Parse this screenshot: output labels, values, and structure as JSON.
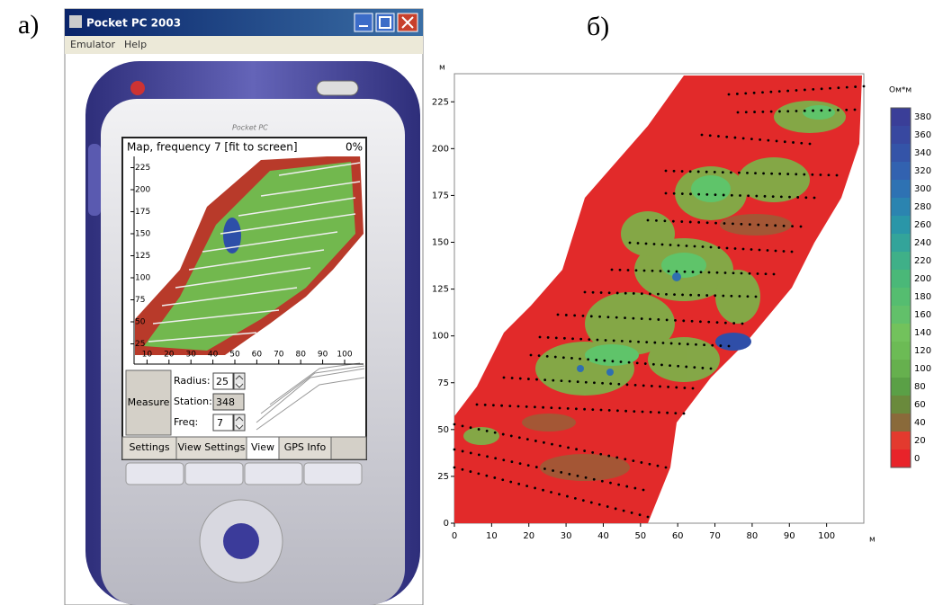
{
  "labels": {
    "left": "а)",
    "right": "б)"
  },
  "emulator": {
    "title": "Pocket PC 2003",
    "menu": [
      "Emulator",
      "Help"
    ],
    "brand": "Pocket PC",
    "screen": {
      "title": "Map, frequency 7 [fit to screen]",
      "progress": "0%",
      "yticks": [
        225,
        200,
        175,
        150,
        125,
        100,
        75,
        50,
        25
      ],
      "xticks": [
        10,
        20,
        30,
        40,
        50,
        60,
        70,
        80,
        90,
        100
      ]
    },
    "controls": {
      "button": "Measure",
      "radius_label": "Radius:",
      "radius": 25,
      "station_label": "Station:",
      "station": 348,
      "freq_label": "Freq:",
      "freq": 7
    },
    "tabs": [
      "Settings",
      "View Settings",
      "View",
      "GPS Info"
    ]
  },
  "map": {
    "y_unit": "м",
    "x_unit": "м",
    "xlim": [
      0,
      110
    ],
    "ylim": [
      0,
      240
    ],
    "xticks": [
      0,
      10,
      20,
      30,
      40,
      50,
      60,
      70,
      80,
      90,
      100
    ],
    "yticks": [
      0,
      25,
      50,
      75,
      100,
      125,
      150,
      175,
      200,
      225
    ],
    "colorbar": {
      "title": "Ом*м",
      "ticks": [
        0,
        20,
        40,
        60,
        80,
        100,
        120,
        140,
        160,
        180,
        200,
        220,
        240,
        260,
        280,
        300,
        320,
        340,
        360,
        380
      ],
      "colors": [
        "#e8232a",
        "#e33a2e",
        "#8a6a3a",
        "#6a8a3c",
        "#5aa046",
        "#66b04e",
        "#6cbb55",
        "#72c25c",
        "#62c06a",
        "#55bd70",
        "#4ab878",
        "#3fb088",
        "#33a49a",
        "#2a96a8",
        "#2b84b0",
        "#2e72b3",
        "#3262b0",
        "#3454a8",
        "#3848a0",
        "#3a3e98"
      ]
    }
  }
}
